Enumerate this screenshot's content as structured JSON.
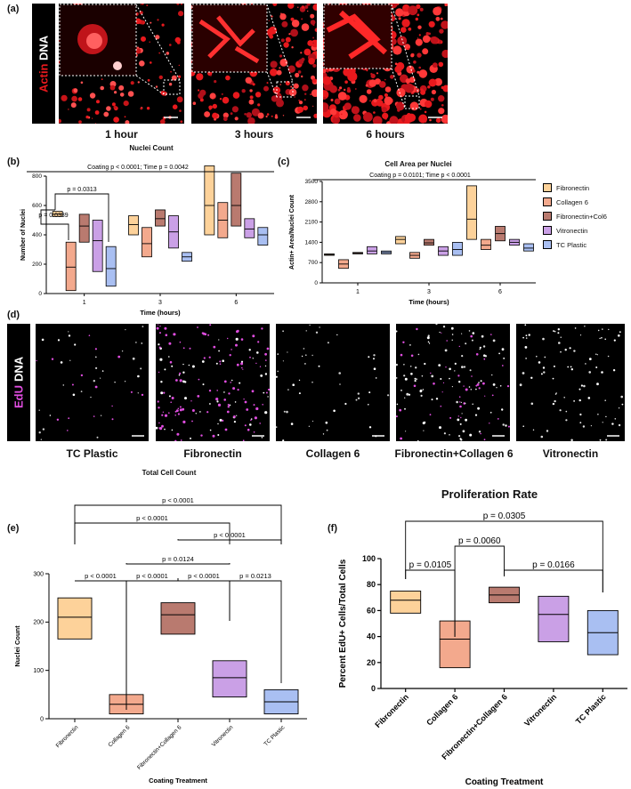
{
  "panels": {
    "a": "(a)",
    "b": "(b)",
    "c": "(c)",
    "d": "(d)",
    "e": "(e)",
    "f": "(f)"
  },
  "stain_a": {
    "actin": "Actin",
    "dna": "DNA"
  },
  "stain_d": {
    "edu": "EdU",
    "dna": "DNA"
  },
  "images_a": [
    {
      "label": "1 hour"
    },
    {
      "label": "3 hours"
    },
    {
      "label": "6 hours"
    }
  ],
  "images_d": [
    {
      "label": "TC Plastic"
    },
    {
      "label": "Fibronectin"
    },
    {
      "label": "Collagen 6"
    },
    {
      "label": "Fibronectin+Collagen 6"
    },
    {
      "label": "Vitronectin"
    }
  ],
  "colors": {
    "fibronectin": "#fdd29a",
    "collagen6": "#f3a98d",
    "fibcol6": "#b97a6f",
    "vitronectin": "#caa0e6",
    "tcplastic": "#a9bff2",
    "actin": "#e8191d",
    "edu": "#e04de0"
  },
  "legend_c": [
    "Fibronectin",
    "Collagen 6",
    "Fibronectin+Col6",
    "Vitronectin",
    "TC Plastic"
  ],
  "chart_data": [
    {
      "id": "b",
      "type": "box",
      "title": "Nuclei Count",
      "xlabel": "Time (hours)",
      "ylabel": "Number of Nuclei",
      "ylim": [
        0,
        800
      ],
      "yticks": [
        0,
        200,
        400,
        600,
        800
      ],
      "categories": [
        "1",
        "3",
        "6"
      ],
      "series": [
        {
          "name": "Fibronectin",
          "boxes": [
            [
              525,
              540,
              560
            ],
            [
              400,
              470,
              530
            ],
            [
              400,
              600,
              870
            ]
          ]
        },
        {
          "name": "Collagen 6",
          "boxes": [
            [
              20,
              180,
              350
            ],
            [
              250,
              340,
              450
            ],
            [
              380,
              500,
              620
            ]
          ]
        },
        {
          "name": "Fibronectin+Col6",
          "boxes": [
            [
              350,
              460,
              540
            ],
            [
              460,
              510,
              570
            ],
            [
              460,
              600,
              820
            ]
          ]
        },
        {
          "name": "Vitronectin",
          "boxes": [
            [
              150,
              360,
              500
            ],
            [
              310,
              420,
              530
            ],
            [
              380,
              440,
              510
            ]
          ]
        },
        {
          "name": "TC Plastic",
          "boxes": [
            [
              50,
              170,
              320
            ],
            [
              220,
              250,
              280
            ],
            [
              330,
              400,
              450
            ]
          ]
        }
      ],
      "annotations": [
        {
          "text": "Coating p < 0.0001; Time p = 0.0042"
        },
        {
          "text": "p = 0.0313"
        },
        {
          "text": "p = 0.0339"
        }
      ]
    },
    {
      "id": "c",
      "type": "box",
      "title": "Cell Area per Nuclei",
      "xlabel": "Time (hours)",
      "ylabel": "Actin+ Area/Nuclei Count",
      "ylim": [
        0,
        3500
      ],
      "yticks": [
        0,
        700,
        1400,
        2100,
        2800,
        3500
      ],
      "categories": [
        "1",
        "3",
        "6"
      ],
      "series": [
        {
          "name": "Fibronectin",
          "boxes": [
            [
              950,
              980,
              1000
            ],
            [
              1350,
              1500,
              1600
            ],
            [
              1500,
              2200,
              3350
            ]
          ]
        },
        {
          "name": "Collagen 6",
          "boxes": [
            [
              500,
              650,
              800
            ],
            [
              850,
              950,
              1050
            ],
            [
              1150,
              1300,
              1500
            ]
          ]
        },
        {
          "name": "Fibronectin+Col6",
          "boxes": [
            [
              1000,
              1020,
              1050
            ],
            [
              1300,
              1380,
              1500
            ],
            [
              1450,
              1700,
              1950
            ]
          ]
        },
        {
          "name": "Vitronectin",
          "boxes": [
            [
              1000,
              1100,
              1250
            ],
            [
              950,
              1100,
              1250
            ],
            [
              1300,
              1400,
              1500
            ]
          ]
        },
        {
          "name": "TC Plastic",
          "boxes": [
            [
              1000,
              1050,
              1100
            ],
            [
              950,
              1150,
              1400
            ],
            [
              1100,
              1200,
              1350
            ]
          ]
        }
      ],
      "annotations": [
        {
          "text": "Coating p = 0.0101; Time p < 0.0001"
        }
      ]
    },
    {
      "id": "e",
      "type": "box",
      "title": "Total Cell Count",
      "xlabel": "Coating Treatment",
      "ylabel": "Nuclei Count",
      "ylim": [
        0,
        300
      ],
      "yticks": [
        0,
        100,
        200,
        300
      ],
      "categories": [
        "Fibronectin",
        "Collagen 6",
        "Fibronectin+Collagen 6",
        "Vitronectin",
        "TC Plastic"
      ],
      "boxes": [
        [
          165,
          210,
          250
        ],
        [
          10,
          30,
          50
        ],
        [
          175,
          215,
          240
        ],
        [
          45,
          85,
          120
        ],
        [
          10,
          35,
          60
        ]
      ],
      "annotations": [
        {
          "text": "p < 0.0001"
        },
        {
          "text": "p < 0.0001"
        },
        {
          "text": "p < 0.0001"
        },
        {
          "text": "p = 0.0124"
        },
        {
          "text": "p < 0.0001"
        },
        {
          "text": "p < 0.0001"
        },
        {
          "text": "p < 0.0001"
        },
        {
          "text": "p = 0.0213"
        }
      ]
    },
    {
      "id": "f",
      "type": "box",
      "title": "Proliferation Rate",
      "xlabel": "Coating Treatment",
      "ylabel": "Percent EdU+ Cells/Total Cells",
      "ylim": [
        0,
        100
      ],
      "yticks": [
        0,
        20,
        40,
        60,
        80,
        100
      ],
      "categories": [
        "Fibronectin",
        "Collagen 6",
        "Fibronectin+Collagen 6",
        "Vitronectin",
        "TC Plastic"
      ],
      "boxes": [
        [
          58,
          68,
          75
        ],
        [
          16,
          38,
          52
        ],
        [
          66,
          72,
          78
        ],
        [
          36,
          57,
          71
        ],
        [
          26,
          43,
          60
        ]
      ],
      "annotations": [
        {
          "text": "p = 0.0305"
        },
        {
          "text": "p = 0.0060"
        },
        {
          "text": "p = 0.0105"
        },
        {
          "text": "p = 0.0166"
        }
      ]
    }
  ]
}
